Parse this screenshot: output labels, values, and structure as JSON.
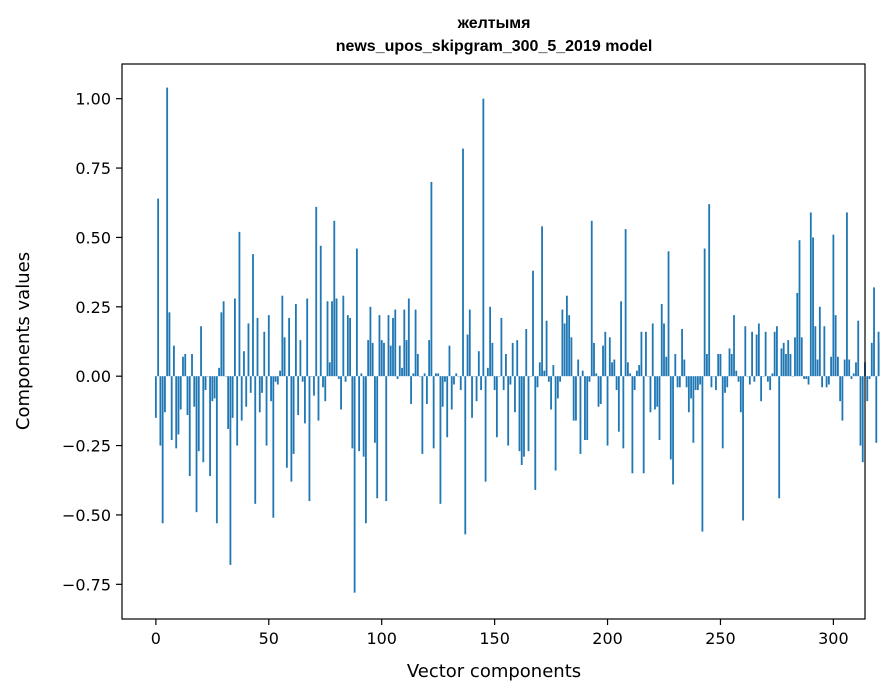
{
  "chart_data": {
    "type": "bar",
    "title": "желтымя",
    "subtitle": "news_upos_skipgram_300_5_2019 model",
    "xlabel": "Vector components",
    "ylabel": "Components values",
    "xlim": [
      -15,
      314
    ],
    "ylim": [
      -0.875,
      1.125
    ],
    "x_ticks": [
      0,
      50,
      100,
      150,
      200,
      250,
      300
    ],
    "x_tick_labels": [
      "0",
      "50",
      "100",
      "150",
      "200",
      "250",
      "300"
    ],
    "y_ticks": [
      -0.75,
      -0.5,
      -0.25,
      0.0,
      0.25,
      0.5,
      0.75,
      1.0
    ],
    "y_tick_labels": [
      "−0.75",
      "−0.50",
      "−0.25",
      "0.00",
      "0.25",
      "0.50",
      "0.75",
      "1.00"
    ],
    "bar_color": "#1f77b4",
    "grid": false,
    "series": [
      {
        "values": [
          -0.15,
          0.64,
          -0.25,
          -0.53,
          -0.13,
          1.04,
          0.23,
          -0.23,
          0.11,
          -0.26,
          -0.21,
          -0.12,
          0.07,
          0.08,
          -0.14,
          -0.36,
          0.08,
          -0.11,
          -0.49,
          -0.27,
          0.18,
          -0.31,
          -0.05,
          0.0,
          -0.36,
          -0.09,
          -0.08,
          -0.53,
          0.03,
          0.23,
          0.27,
          0.0,
          -0.19,
          -0.68,
          -0.15,
          0.28,
          -0.25,
          0.52,
          -0.16,
          0.09,
          -0.11,
          0.19,
          -0.06,
          0.44,
          -0.46,
          0.21,
          -0.13,
          -0.06,
          0.16,
          -0.25,
          0.22,
          -0.09,
          -0.51,
          -0.02,
          -0.03,
          0.02,
          0.29,
          0.14,
          -0.33,
          0.21,
          -0.38,
          -0.28,
          0.26,
          -0.14,
          0.13,
          -0.02,
          -0.17,
          0.28,
          -0.45,
          0.0,
          -0.07,
          0.61,
          -0.16,
          0.47,
          -0.04,
          -0.09,
          0.27,
          0.05,
          0.27,
          0.56,
          0.28,
          -0.01,
          -0.12,
          0.29,
          -0.02,
          0.22,
          0.21,
          -0.26,
          -0.78,
          0.46,
          -0.27,
          0.01,
          -0.29,
          -0.53,
          0.13,
          0.25,
          0.12,
          -0.24,
          -0.44,
          0.22,
          0.13,
          0.12,
          -0.45,
          0.22,
          0.11,
          0.21,
          0.24,
          -0.01,
          0.11,
          0.03,
          0.24,
          0.13,
          0.28,
          -0.1,
          0.01,
          0.24,
          0.08,
          0.0,
          -0.28,
          0.01,
          -0.1,
          0.13,
          0.7,
          -0.26,
          0.01,
          0.01,
          -0.46,
          -0.11,
          -0.02,
          -0.22,
          0.11,
          -0.12,
          -0.03,
          0.01,
          0.0,
          -0.05,
          0.82,
          -0.57,
          0.15,
          0.24,
          -0.15,
          0.0,
          -0.09,
          0.09,
          -0.05,
          1.0,
          -0.38,
          0.03,
          0.25,
          0.12,
          -0.05,
          -0.22,
          0.0,
          0.21,
          -0.05,
          0.08,
          -0.25,
          -0.03,
          0.12,
          -0.13,
          0.13,
          -0.27,
          -0.32,
          -0.29,
          0.17,
          -0.27,
          0.0,
          0.38,
          -0.41,
          -0.04,
          0.05,
          0.54,
          0.02,
          0.2,
          -0.02,
          -0.12,
          0.04,
          -0.34,
          -0.08,
          -0.02,
          0.24,
          0.19,
          0.29,
          0.22,
          0.14,
          -0.16,
          -0.16,
          0.06,
          -0.28,
          0.02,
          -0.23,
          -0.23,
          -0.02,
          0.56,
          0.12,
          0.01,
          -0.11,
          -0.1,
          0.11,
          0.16,
          -0.25,
          0.14,
          0.05,
          0.06,
          -0.05,
          -0.2,
          0.27,
          -0.26,
          0.53,
          0.05,
          0.01,
          -0.35,
          -0.05,
          0.02,
          0.04,
          0.16,
          -0.35,
          0.16,
          0.0,
          -0.13,
          0.19,
          -0.12,
          -0.11,
          -0.23,
          0.26,
          0.19,
          0.07,
          0.45,
          -0.3,
          -0.39,
          0.08,
          -0.04,
          -0.04,
          0.17,
          0.06,
          -0.04,
          -0.13,
          -0.08,
          -0.24,
          -0.05,
          -0.05,
          -0.03,
          -0.56,
          0.46,
          0.08,
          0.62,
          -0.04,
          0.0,
          -0.05,
          0.08,
          0.08,
          -0.26,
          -0.06,
          -0.04,
          0.1,
          0.08,
          0.22,
          0.02,
          -0.02,
          -0.13,
          -0.52,
          0.18,
          0.0,
          -0.03,
          0.16,
          -0.02,
          0.15,
          0.19,
          -0.09,
          0.0,
          0.16,
          -0.02,
          -0.05,
          0.01,
          0.16,
          0.18,
          -0.44,
          0.1,
          0.12,
          0.08,
          0.13,
          0.08,
          0.0,
          0.14,
          0.3,
          0.49,
          0.14,
          -0.01,
          -0.01,
          -0.03,
          0.59,
          0.5,
          0.18,
          0.06,
          0.25,
          -0.04,
          0.18,
          -0.04,
          -0.03,
          0.07,
          0.51,
          0.22,
          0.07,
          -0.09,
          -0.16,
          0.06,
          0.59,
          0.06,
          -0.01,
          0.01,
          0.05,
          0.2,
          -0.25,
          -0.31,
          0.05,
          -0.09,
          -0.01,
          0.12,
          0.32,
          -0.24,
          0.16,
          0.12,
          -0.05,
          0.09
        ]
      }
    ]
  }
}
